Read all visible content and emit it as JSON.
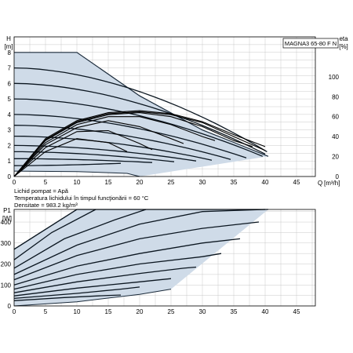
{
  "chart_data": [
    {
      "type": "line",
      "panel": "head",
      "title_box": "MAGNA3 65-80 F N",
      "ylabel": "H",
      "yunit": "[m]",
      "ylabel_right": "eta",
      "yunit_right": "[%]",
      "xlabel": "Q",
      "xunit": "[m³/h]",
      "xlim": [
        0,
        48
      ],
      "ylim": [
        0,
        9
      ],
      "ylim_right": [
        0,
        140
      ],
      "xticks": [
        0,
        5,
        10,
        15,
        20,
        25,
        30,
        35,
        40,
        45
      ],
      "xtick_labels": [
        "0",
        "5",
        "10",
        "15",
        "20",
        "25",
        "30",
        "35",
        "40",
        "45"
      ],
      "yticks": [
        0,
        1,
        2,
        3,
        4,
        5,
        6,
        7,
        8
      ],
      "ytick_labels": [
        "0",
        "1",
        "2",
        "3",
        "4",
        "5",
        "6",
        "7",
        "8"
      ],
      "yticks_right": [
        0,
        20,
        40,
        60,
        80,
        100
      ],
      "ytick_labels_right": [
        "0",
        "20",
        "40",
        "60",
        "80",
        "100"
      ],
      "grid": true,
      "max_curve": [
        [
          0,
          8
        ],
        [
          10,
          8
        ],
        [
          20,
          5.2
        ],
        [
          30,
          3.0
        ],
        [
          35,
          2.2
        ],
        [
          40.5,
          1.3
        ]
      ],
      "min_curve": [
        [
          0,
          0.35
        ],
        [
          10,
          0.32
        ],
        [
          18,
          0.2
        ],
        [
          20,
          0
        ]
      ],
      "curves_H": [
        {
          "shutoff": 7.0,
          "end": [
            40.3,
            1.6
          ]
        },
        {
          "shutoff": 6.0,
          "end": [
            40.0,
            1.45
          ]
        },
        {
          "shutoff": 5.0,
          "end": [
            39.6,
            1.3
          ]
        },
        {
          "shutoff": 4.0,
          "end": [
            37.0,
            1.2
          ]
        },
        {
          "shutoff": 3.3,
          "end": [
            34.5,
            1.1
          ]
        },
        {
          "shutoff": 2.6,
          "end": [
            31.5,
            1.05
          ]
        },
        {
          "shutoff": 2.0,
          "end": [
            29.0,
            1.0
          ]
        },
        {
          "shutoff": 1.6,
          "end": [
            25.5,
            0.95
          ]
        },
        {
          "shutoff": 1.15,
          "end": [
            22.0,
            0.9
          ]
        },
        {
          "shutoff": 0.7,
          "end": [
            17.0,
            0.85
          ]
        }
      ],
      "efficiency_curves": [
        {
          "points": [
            [
              0,
              0
            ],
            [
              5,
              38
            ],
            [
              10,
              56
            ],
            [
              15,
              64
            ],
            [
              20,
              66
            ],
            [
              25,
              63
            ],
            [
              30,
              55
            ],
            [
              35,
              42
            ],
            [
              40,
              30
            ]
          ]
        },
        {
          "points": [
            [
              0,
              0
            ],
            [
              5,
              37
            ],
            [
              10,
              55
            ],
            [
              15,
              63
            ],
            [
              20,
              65
            ],
            [
              25,
              62
            ],
            [
              30,
              54
            ],
            [
              35,
              40
            ],
            [
              40,
              26
            ]
          ]
        },
        {
          "points": [
            [
              0,
              0
            ],
            [
              5,
              36
            ],
            [
              10,
              54
            ],
            [
              15,
              62
            ],
            [
              20,
              64
            ],
            [
              25,
              60
            ],
            [
              30,
              50
            ],
            [
              35,
              36
            ],
            [
              38,
              30
            ]
          ]
        },
        {
          "points": [
            [
              0,
              0
            ],
            [
              5,
              34
            ],
            [
              10,
              52
            ],
            [
              15,
              60
            ],
            [
              20,
              60
            ],
            [
              25,
              52
            ],
            [
              30,
              40
            ],
            [
              32,
              36
            ]
          ]
        },
        {
          "points": [
            [
              0,
              0
            ],
            [
              5,
              32
            ],
            [
              10,
              49
            ],
            [
              15,
              56
            ],
            [
              20,
              50
            ],
            [
              25,
              38
            ],
            [
              27,
              33
            ]
          ]
        },
        {
          "points": [
            [
              0,
              0
            ],
            [
              5,
              29
            ],
            [
              10,
              45
            ],
            [
              15,
              46
            ],
            [
              20,
              33
            ],
            [
              22,
              27
            ]
          ]
        },
        {
          "points": [
            [
              0,
              0
            ],
            [
              5,
              25
            ],
            [
              10,
              38
            ],
            [
              15,
              34
            ],
            [
              18,
              25
            ]
          ]
        }
      ],
      "notes": [
        "Lichid pompat = Apă",
        "Temperatura lichidului în timpul funcţionării = 60 °C",
        "Densitate = 983.2 kg/m³"
      ]
    },
    {
      "type": "line",
      "panel": "power",
      "ylabel": "P1",
      "yunit": "[W]",
      "xlim": [
        0,
        48
      ],
      "ylim": [
        0,
        460
      ],
      "xticks": [
        0,
        5,
        10,
        15,
        20,
        25,
        30,
        35,
        40,
        45
      ],
      "xtick_labels": [
        "0",
        "5",
        "10",
        "15",
        "20",
        "25",
        "30",
        "35",
        "40",
        "45"
      ],
      "yticks": [
        0,
        100,
        200,
        300,
        400
      ],
      "ytick_labels": [
        "0",
        "100",
        "200",
        "300",
        "400"
      ],
      "grid": true,
      "max_curve": [
        [
          0,
          270
        ],
        [
          10,
          460
        ],
        [
          40.5,
          460
        ]
      ],
      "min_curve": [
        [
          0,
          0
        ],
        [
          10,
          20
        ],
        [
          20,
          55
        ],
        [
          25,
          80
        ]
      ],
      "curves_P1": [
        {
          "points": [
            [
              0,
              270
            ],
            [
              10,
              460
            ]
          ]
        },
        {
          "points": [
            [
              0,
              220
            ],
            [
              6,
              350
            ],
            [
              13,
              460
            ]
          ]
        },
        {
          "points": [
            [
              0,
              180
            ],
            [
              8,
              320
            ],
            [
              16,
              410
            ],
            [
              21,
              460
            ]
          ]
        },
        {
          "points": [
            [
              0,
              150
            ],
            [
              10,
              290
            ],
            [
              20,
              390
            ],
            [
              30,
              450
            ],
            [
              40,
              460
            ]
          ]
        },
        {
          "points": [
            [
              0,
              125
            ],
            [
              10,
              240
            ],
            [
              20,
              320
            ],
            [
              30,
              370
            ],
            [
              39,
              400
            ]
          ]
        },
        {
          "points": [
            [
              0,
              100
            ],
            [
              10,
              190
            ],
            [
              20,
              250
            ],
            [
              30,
              300
            ],
            [
              36,
              320
            ]
          ]
        },
        {
          "points": [
            [
              0,
              80
            ],
            [
              10,
              150
            ],
            [
              20,
              200
            ],
            [
              30,
              235
            ],
            [
              33,
              250
            ]
          ]
        },
        {
          "points": [
            [
              0,
              63
            ],
            [
              10,
              115
            ],
            [
              20,
              155
            ],
            [
              27,
              180
            ],
            [
              29,
              185
            ]
          ]
        },
        {
          "points": [
            [
              0,
              48
            ],
            [
              10,
              85
            ],
            [
              20,
              115
            ],
            [
              25,
              130
            ]
          ]
        },
        {
          "points": [
            [
              0,
              36
            ],
            [
              10,
              60
            ],
            [
              17,
              80
            ],
            [
              20,
              90
            ]
          ]
        },
        {
          "points": [
            [
              0,
              25
            ],
            [
              8,
              40
            ],
            [
              15,
              50
            ],
            [
              17,
              52
            ]
          ]
        }
      ]
    }
  ]
}
